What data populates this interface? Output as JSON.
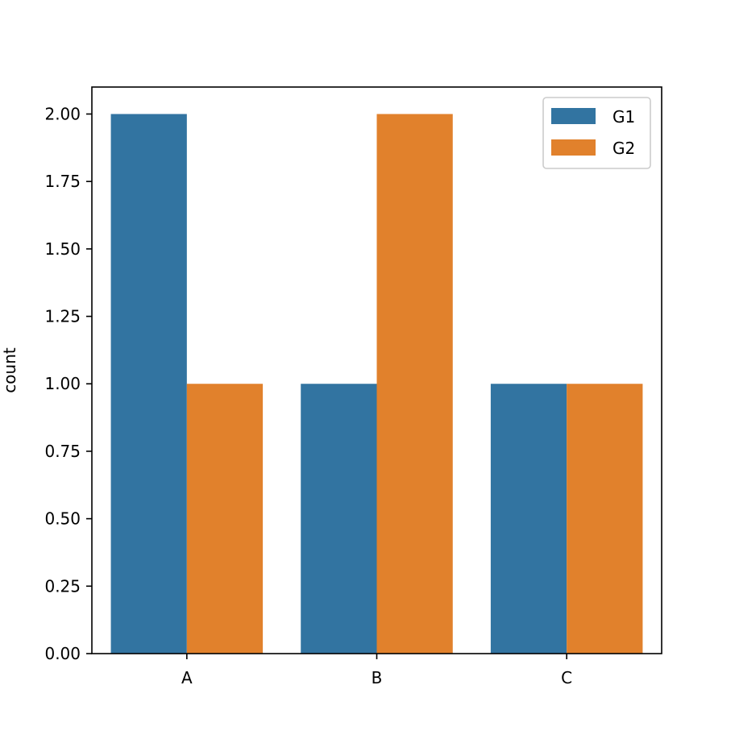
{
  "chart_data": {
    "type": "bar",
    "title": "",
    "xlabel": "",
    "ylabel": "count",
    "categories": [
      "A",
      "B",
      "C"
    ],
    "series": [
      {
        "name": "G1",
        "color": "#3274a1",
        "values": [
          2,
          1,
          1
        ]
      },
      {
        "name": "G2",
        "color": "#e1812c",
        "values": [
          1,
          2,
          1
        ]
      }
    ],
    "ylim": [
      0,
      2.1
    ],
    "yticks": [
      0,
      0.25,
      0.5,
      0.75,
      1.0,
      1.25,
      1.5,
      1.75,
      2.0
    ],
    "ytick_labels": [
      "0.00",
      "0.25",
      "0.50",
      "0.75",
      "1.00",
      "1.25",
      "1.50",
      "1.75",
      "2.00"
    ],
    "grid": false,
    "legend_position": "top-right"
  }
}
